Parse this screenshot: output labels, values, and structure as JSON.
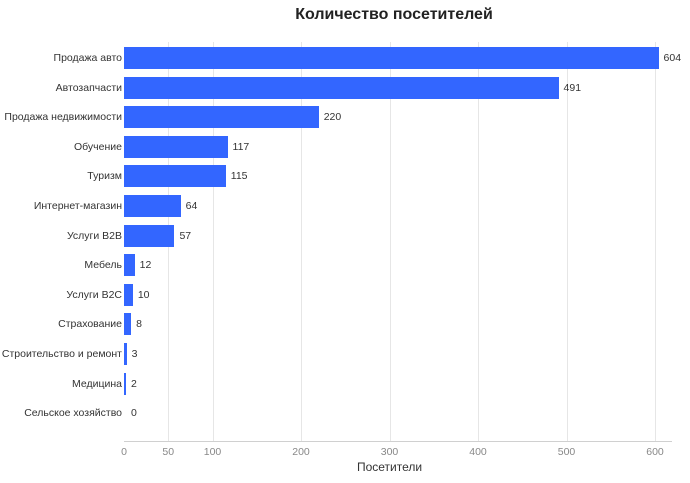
{
  "chart_data": {
    "type": "bar",
    "orientation": "horizontal",
    "title": "Количество посетителей",
    "xlabel": "Посетители",
    "ylabel": "",
    "categories": [
      "Продажа авто",
      "Автозапчасти",
      "Продажа недвижимости",
      "Обучение",
      "Туризм",
      "Интернет-магазин",
      "Услуги B2B",
      "Мебель",
      "Услуги B2C",
      "Страхование",
      "Строительство и ремонт",
      "Медицина",
      "Сельское хозяйство"
    ],
    "values": [
      604,
      491,
      220,
      117,
      115,
      64,
      57,
      12,
      10,
      8,
      3,
      2,
      0
    ],
    "xticks": [
      0,
      50,
      100,
      200,
      300,
      400,
      500,
      600
    ],
    "xlim": [
      0,
      620
    ],
    "grid": true,
    "bar_color": "#3366ff",
    "data_labels": true
  }
}
